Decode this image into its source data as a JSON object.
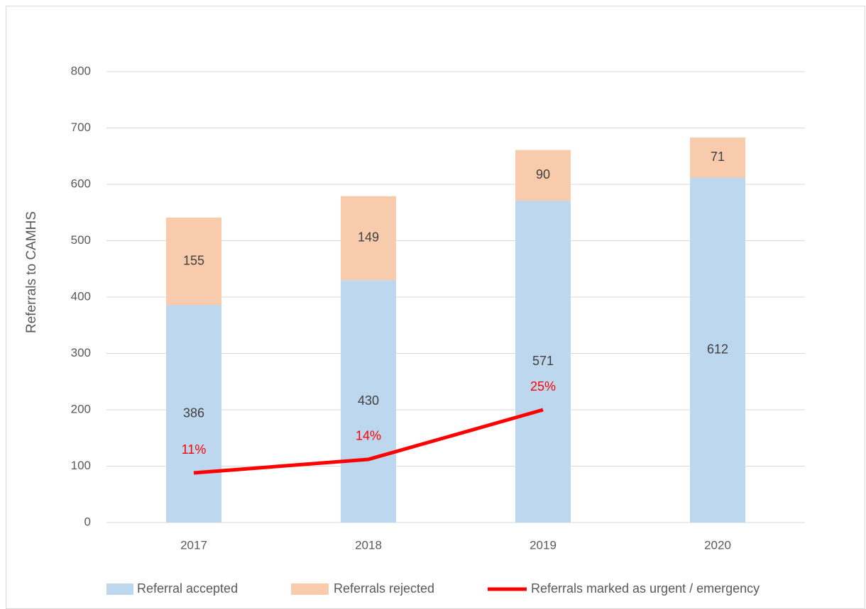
{
  "chart_data": {
    "type": "bar",
    "stacked": true,
    "y_label": "Referrals to CAMHS",
    "categories": [
      "2017",
      "2018",
      "2019",
      "2020"
    ],
    "series": [
      {
        "name": "Referral accepted",
        "color": "#BDD7EE",
        "values": [
          386,
          430,
          571,
          612
        ]
      },
      {
        "name": "Referrals rejected",
        "color": "#F8CBAD",
        "values": [
          155,
          149,
          90,
          71
        ]
      },
      {
        "name": "Referrals marked as urgent / emergency",
        "type": "line",
        "axis": "y2",
        "color": "#FF0000",
        "values": [
          11,
          14,
          25,
          null
        ],
        "value_labels": [
          "11%",
          "14%",
          "25%",
          null
        ]
      }
    ],
    "ylim": [
      0,
      800
    ],
    "yticks": [
      0,
      100,
      200,
      300,
      400,
      500,
      600,
      700,
      800
    ],
    "y2lim": [
      0,
      100
    ],
    "grid": true,
    "legend": "bottom"
  }
}
